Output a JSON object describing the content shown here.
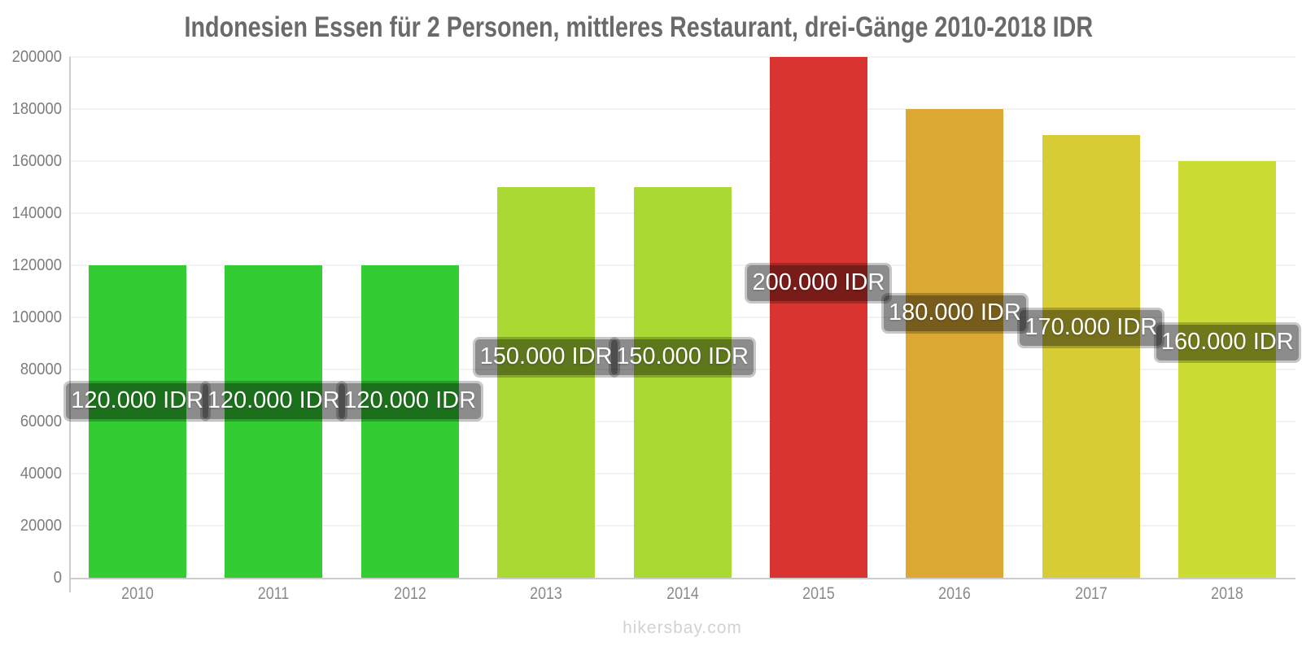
{
  "page": {
    "title": "Indonesien Essen für 2 Personen, mittleres Restaurant, drei-Gänge 2010-2018 IDR",
    "watermark": "hikersbay.com"
  },
  "chart_data": {
    "type": "bar",
    "title": "Indonesien Essen für 2 Personen, mittleres Restaurant, drei-Gänge 2010-2018 IDR",
    "categories": [
      "2010",
      "2011",
      "2012",
      "2013",
      "2014",
      "2015",
      "2016",
      "2017",
      "2018"
    ],
    "values": [
      120000,
      120000,
      120000,
      150000,
      150000,
      200000,
      180000,
      170000,
      160000
    ],
    "value_labels": [
      "120.000 IDR",
      "120.000 IDR",
      "120.000 IDR",
      "150.000 IDR",
      "150.000 IDR",
      "200.000 IDR",
      "180.000 IDR",
      "170.000 IDR",
      "160.000 IDR"
    ],
    "bar_colors": [
      "#33cc33",
      "#33cc33",
      "#33cc33",
      "#aad933",
      "#aad933",
      "#d9342f",
      "#dba834",
      "#d7cc34",
      "#cbdd34"
    ],
    "unit": "IDR",
    "xlabel": "",
    "ylabel": "",
    "ylim": [
      0,
      200000
    ],
    "ytick_step": 20000,
    "ytick_labels": [
      "0",
      "20000",
      "40000",
      "60000",
      "80000",
      "100000",
      "120000",
      "140000",
      "160000",
      "180000",
      "200000"
    ],
    "grid": "horizontal-faint",
    "legend_position": "none"
  },
  "colors": {
    "axis_line": "#cccccc",
    "grid_line": "#f3f3f3",
    "y_tick_text": "#7d7d7d",
    "x_tick_text": "#8a8a8a",
    "title_text": "#6a6a6a",
    "tooltip_bg": "rgba(0,0,0,0.45)",
    "tooltip_text": "#ffffff",
    "watermark_text": "#d2d2d2",
    "background": "#ffffff"
  }
}
